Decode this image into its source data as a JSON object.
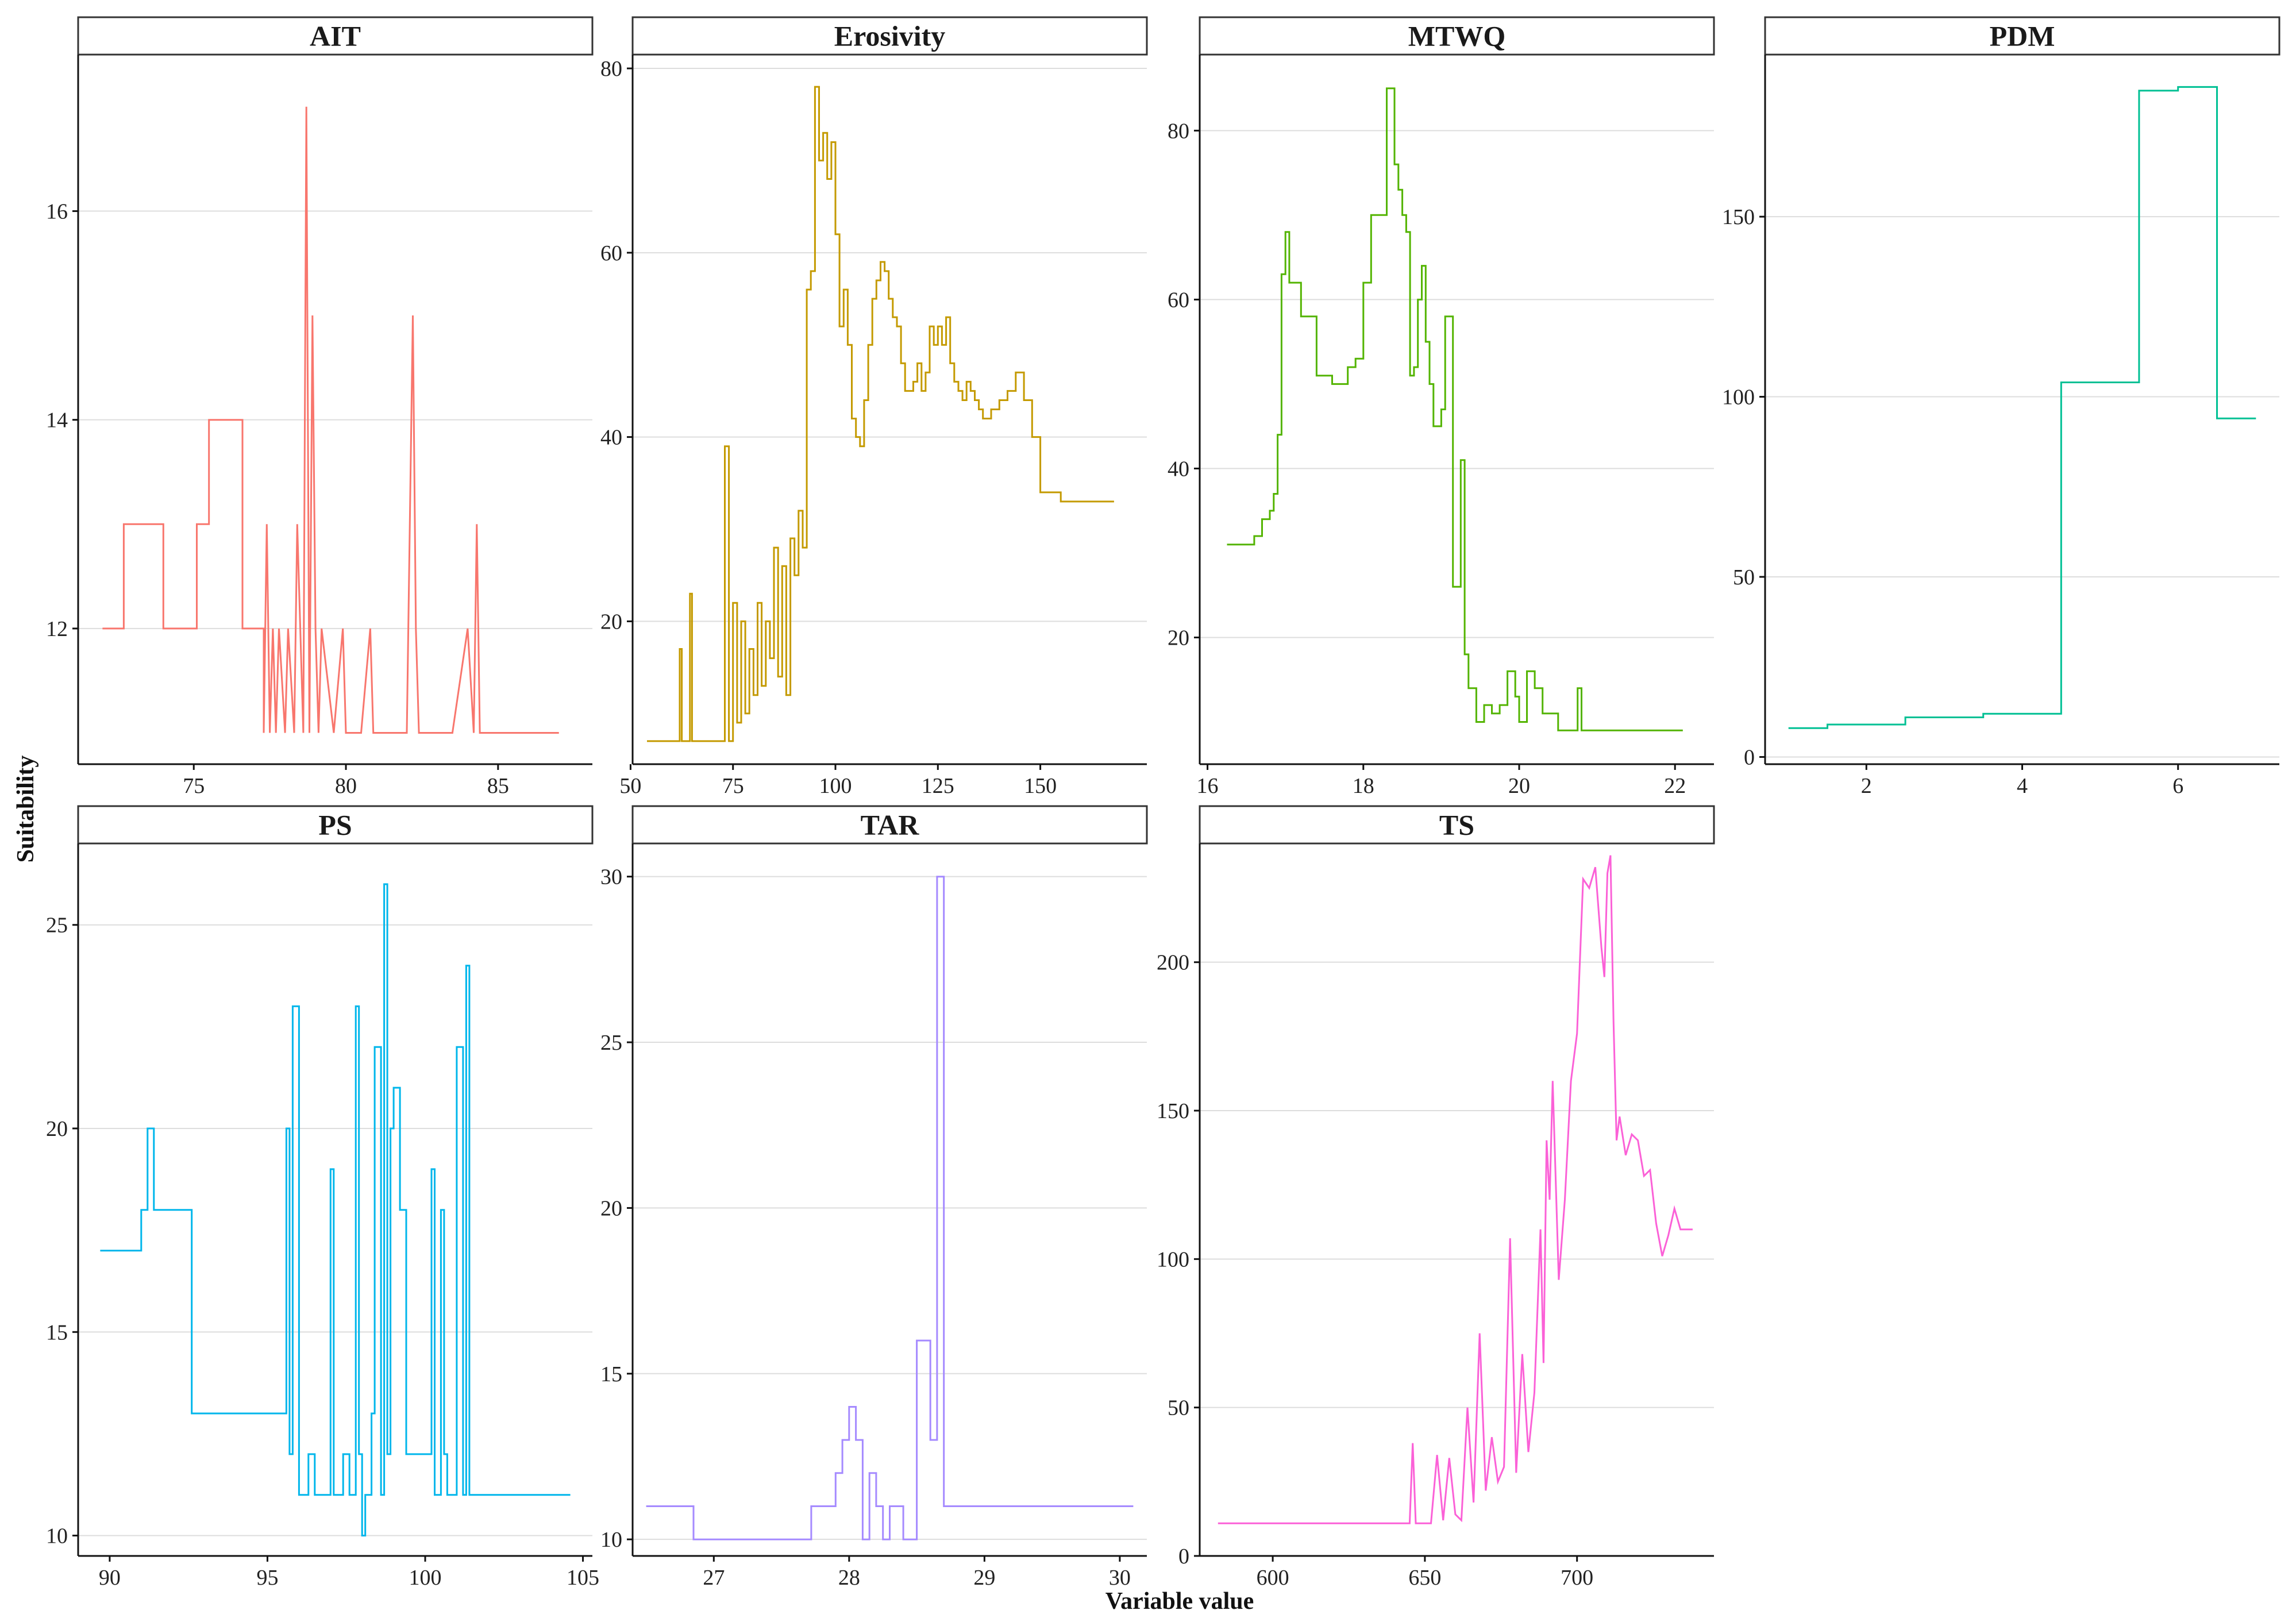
{
  "chart_data": {
    "type": "line",
    "xlabel": "Variable value",
    "ylabel": "Suitability",
    "grid": "horizontal-major",
    "legend": "none",
    "panels": [
      {
        "title": "AIT",
        "color": "#F8766D",
        "xlim": [
          71.2,
          88.1
        ],
        "ylim": [
          10.7,
          17.5
        ],
        "xticks": [
          75,
          80,
          85
        ],
        "yticks": [
          12,
          14,
          16
        ],
        "x": [
          72.0,
          72.7,
          72.7,
          74.0,
          74.0,
          75.1,
          75.1,
          75.5,
          75.5,
          76.6,
          76.6,
          77.3,
          77.3,
          77.4,
          77.5,
          77.6,
          77.7,
          77.8,
          78.0,
          78.1,
          78.3,
          78.4,
          78.6,
          78.7,
          78.8,
          78.9,
          79.0,
          79.1,
          79.2,
          79.6,
          79.9,
          80.0,
          80.1,
          80.5,
          80.8,
          80.9,
          82.0,
          82.2,
          82.3,
          82.4,
          83.0,
          83.5,
          84.0,
          84.2,
          84.3,
          84.4,
          84.5,
          87.0
        ],
        "y": [
          12,
          12,
          13,
          13,
          12,
          12,
          13,
          13,
          14,
          14,
          12,
          12,
          11,
          13,
          11,
          12,
          11,
          12,
          11,
          12,
          11,
          13,
          11,
          17,
          11,
          15,
          12,
          11,
          12,
          11,
          12,
          11,
          11,
          11,
          12,
          11,
          11,
          15,
          12,
          11,
          11,
          11,
          12,
          11,
          13,
          11,
          11,
          11
        ]
      },
      {
        "title": "Erosivity",
        "color": "#C49A00",
        "xlim": [
          50.5,
          176
        ],
        "ylim": [
          4.5,
          81.5
        ],
        "xticks": [
          50,
          75,
          100,
          125,
          150
        ],
        "yticks": [
          20,
          40,
          60,
          80
        ],
        "x": [
          54,
          60,
          62,
          62.5,
          64,
          64.5,
          65,
          66,
          70,
          73,
          74,
          75,
          76,
          77,
          78,
          79,
          80,
          81,
          82,
          83,
          84,
          85,
          86,
          87,
          88,
          89,
          90,
          91,
          92,
          93,
          94,
          95,
          96,
          97,
          98,
          99,
          100,
          101,
          102,
          103,
          104,
          105,
          106,
          107,
          108,
          109,
          110,
          111,
          112,
          113,
          114,
          115,
          116,
          117,
          118,
          119,
          120,
          121,
          122,
          123,
          124,
          125,
          126,
          127,
          128,
          129,
          130,
          131,
          132,
          133,
          134,
          135,
          136,
          138,
          140,
          142,
          144,
          146,
          148,
          150,
          152,
          154,
          155,
          164,
          168
        ],
        "y": [
          7,
          7,
          17,
          7,
          7,
          23,
          7,
          7,
          7,
          39,
          7,
          22,
          9,
          20,
          10,
          17,
          12,
          22,
          13,
          20,
          16,
          28,
          14,
          26,
          12,
          29,
          25,
          32,
          28,
          56,
          58,
          78,
          70,
          73,
          68,
          72,
          62,
          52,
          56,
          50,
          42,
          40,
          39,
          44,
          50,
          55,
          57,
          59,
          58,
          55,
          53,
          52,
          48,
          45,
          45,
          46,
          48,
          45,
          47,
          52,
          50,
          52,
          50,
          53,
          48,
          46,
          45,
          44,
          46,
          45,
          44,
          43,
          42,
          43,
          44,
          45,
          47,
          44,
          40,
          34,
          34,
          34,
          33,
          33,
          33
        ],
        "shape": "hv"
      },
      {
        "title": "MTWQ",
        "color": "#53B400",
        "xlim": [
          15.9,
          22.5
        ],
        "ylim": [
          5,
          89
        ],
        "xticks": [
          16,
          18,
          20,
          22
        ],
        "yticks": [
          20,
          40,
          60,
          80
        ],
        "x": [
          16.25,
          16.6,
          16.7,
          16.8,
          16.85,
          16.9,
          16.95,
          17.0,
          17.05,
          17.1,
          17.2,
          17.4,
          17.6,
          17.8,
          17.9,
          18.0,
          18.1,
          18.3,
          18.4,
          18.45,
          18.5,
          18.55,
          18.6,
          18.65,
          18.7,
          18.75,
          18.8,
          18.85,
          18.9,
          19.0,
          19.05,
          19.15,
          19.25,
          19.3,
          19.35,
          19.45,
          19.55,
          19.65,
          19.75,
          19.85,
          19.95,
          20.0,
          20.1,
          20.2,
          20.3,
          20.4,
          20.5,
          20.6,
          20.65,
          20.75,
          20.8,
          22.1
        ],
        "y": [
          31,
          32,
          34,
          35,
          37,
          44,
          63,
          68,
          62,
          62,
          58,
          51,
          50,
          52,
          53,
          62,
          70,
          85,
          76,
          73,
          70,
          68,
          51,
          52,
          60,
          64,
          55,
          50,
          45,
          47,
          58,
          26,
          41,
          18,
          14,
          10,
          12,
          11,
          12,
          16,
          13,
          10,
          16,
          14,
          11,
          11,
          9,
          9,
          9,
          14,
          9,
          9
        ],
        "shape": "hv"
      },
      {
        "title": "PDM",
        "color": "#00C094",
        "xlim": [
          0.7,
          7.3
        ],
        "ylim": [
          -2,
          195
        ],
        "xticks": [
          2,
          4,
          6
        ],
        "yticks": [
          0,
          50,
          100,
          150
        ],
        "x": [
          1.0,
          1.5,
          2.5,
          3.5,
          4.5,
          5.5,
          6.0,
          6.5,
          7.0
        ],
        "y": [
          8,
          9,
          11,
          12,
          104,
          185,
          186,
          94,
          94
        ],
        "shape": "hv"
      },
      {
        "title": "PS",
        "color": "#00B6EB",
        "xlim": [
          89,
          105.3
        ],
        "ylim": [
          9.5,
          27
        ],
        "xticks": [
          90,
          95,
          100,
          105
        ],
        "yticks": [
          10,
          15,
          20,
          25
        ],
        "x": [
          89.7,
          90.8,
          91.0,
          91.2,
          91.4,
          92.4,
          92.6,
          95.5,
          95.6,
          95.7,
          95.8,
          96.0,
          96.1,
          96.3,
          96.5,
          96.8,
          97.0,
          97.1,
          97.2,
          97.4,
          97.6,
          97.8,
          97.9,
          98.0,
          98.1,
          98.3,
          98.4,
          98.6,
          98.7,
          98.8,
          98.9,
          99.0,
          99.2,
          99.4,
          99.6,
          99.8,
          100.2,
          100.3,
          100.5,
          100.6,
          100.7,
          100.9,
          101.0,
          101.2,
          101.3,
          101.4,
          101.6,
          104.6
        ],
        "y": [
          17,
          17,
          18,
          20,
          18,
          18,
          13,
          13,
          20,
          12,
          23,
          11,
          11,
          12,
          11,
          11,
          19,
          11,
          11,
          12,
          11,
          23,
          12,
          10,
          11,
          13,
          22,
          11,
          26,
          12,
          20,
          21,
          18,
          12,
          12,
          12,
          19,
          11,
          18,
          12,
          11,
          11,
          22,
          11,
          24,
          11,
          11,
          11
        ],
        "shape": "hv"
      },
      {
        "title": "TAR",
        "color": "#A58AFF",
        "xlim": [
          26.4,
          30.2
        ],
        "ylim": [
          9.5,
          31
        ],
        "xticks": [
          27,
          28,
          29,
          30
        ],
        "yticks": [
          10,
          15,
          20,
          25,
          30
        ],
        "x": [
          26.5,
          26.85,
          27.7,
          27.72,
          27.9,
          27.95,
          28.0,
          28.05,
          28.1,
          28.15,
          28.2,
          28.25,
          28.3,
          28.4,
          28.5,
          28.6,
          28.65,
          28.7,
          28.75,
          30.1
        ],
        "y": [
          11,
          10,
          10,
          11,
          12,
          13,
          14,
          13,
          10,
          12,
          11,
          10,
          11,
          10,
          16,
          13,
          30,
          11,
          11,
          11
        ],
        "shape": "hv"
      },
      {
        "title": "TS",
        "color": "#FB61D7",
        "xlim": [
          576,
          745
        ],
        "ylim": [
          0,
          240
        ],
        "xticks": [
          600,
          650,
          700
        ],
        "yticks": [
          0,
          50,
          100,
          150,
          200
        ],
        "x": [
          582,
          645,
          646,
          647,
          652,
          654,
          656,
          658,
          660,
          662,
          664,
          666,
          668,
          670,
          672,
          674,
          676,
          678,
          680,
          682,
          684,
          686,
          688,
          689,
          690,
          691,
          692,
          694,
          696,
          698,
          700,
          702,
          704,
          706,
          708,
          709,
          710,
          711,
          712,
          713,
          714,
          716,
          718,
          720,
          722,
          724,
          726,
          728,
          730,
          732,
          734,
          738
        ],
        "y": [
          11,
          11,
          38,
          11,
          11,
          34,
          12,
          33,
          14,
          12,
          50,
          18,
          75,
          22,
          40,
          25,
          30,
          107,
          28,
          68,
          35,
          55,
          110,
          65,
          140,
          120,
          160,
          93,
          120,
          160,
          176,
          228,
          225,
          232,
          205,
          195,
          230,
          236,
          180,
          140,
          148,
          135,
          142,
          140,
          128,
          130,
          112,
          101,
          108,
          117,
          110,
          110
        ]
      }
    ]
  }
}
